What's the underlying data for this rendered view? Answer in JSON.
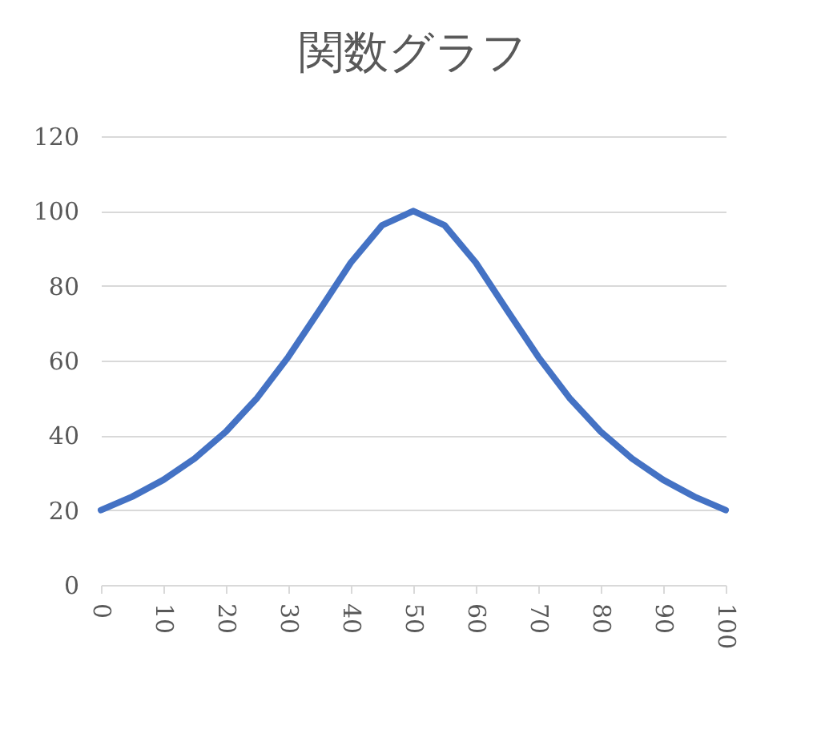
{
  "chart_data": {
    "type": "line",
    "title": "関数グラフ",
    "x": [
      0,
      5,
      10,
      15,
      20,
      25,
      30,
      35,
      40,
      45,
      50,
      55,
      60,
      65,
      70,
      75,
      80,
      85,
      90,
      95,
      100
    ],
    "series": [
      {
        "color": "#4472c4",
        "values": [
          20,
          23.6,
          28.1,
          33.8,
          41,
          50,
          61,
          73.5,
          86.2,
          96.2,
          100,
          96.2,
          86.2,
          73.5,
          61,
          50,
          41,
          33.8,
          28.1,
          23.6,
          20
        ]
      }
    ],
    "xlim": [
      0,
      100
    ],
    "xticks": [
      0,
      10,
      20,
      30,
      40,
      50,
      60,
      70,
      80,
      90,
      100
    ],
    "ylim": [
      0,
      120
    ],
    "yticks": [
      0,
      20,
      40,
      60,
      80,
      100,
      120
    ],
    "grid": "y",
    "legend": false,
    "marker": "none",
    "line_style": "solid"
  }
}
